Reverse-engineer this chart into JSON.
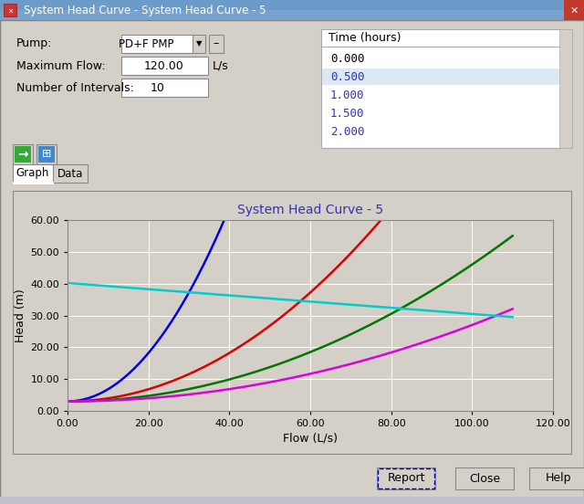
{
  "title": "System Head Curve - 5",
  "xlabel": "Flow (L/s)",
  "ylabel": "Head (m)",
  "xlim": [
    0,
    120
  ],
  "ylim": [
    0,
    60
  ],
  "xticks": [
    0.0,
    20.0,
    40.0,
    60.0,
    80.0,
    100.0,
    120.0
  ],
  "yticks": [
    0.0,
    10.0,
    20.0,
    30.0,
    40.0,
    50.0,
    60.0
  ],
  "title_color": "#3333AA",
  "curves": [
    {
      "label": "0.000",
      "color": "#0000EE",
      "a": 0.038,
      "b": 0.0,
      "c": 3.0,
      "x_end": 40.0
    },
    {
      "label": "0.500",
      "color": "#DD0000",
      "a": 0.0095,
      "b": 0.0,
      "c": 3.0,
      "x_end": 80.0
    },
    {
      "label": "1.000",
      "color": "#007700",
      "a": 0.0043,
      "b": 0.0,
      "c": 3.0,
      "x_end": 110.0
    },
    {
      "label": "1.500",
      "color": "#DD00DD",
      "a": 0.0024,
      "b": 0.0,
      "c": 3.0,
      "x_end": 110.0
    },
    {
      "label": "2.000",
      "color": "#00CCCC",
      "start_y": 40.2,
      "end_y": 29.5,
      "x_start": 0.0,
      "x_end": 110.0
    }
  ],
  "bg_color": "#d4d0c8",
  "plot_area_color": "#d4d0c8",
  "grid_color": "#ffffff",
  "window_title": "System Head Curve - System Head Curve - 5",
  "time_hours_label": "Time (hours)",
  "time_values": [
    "0.000",
    "0.500",
    "1.000",
    "1.500",
    "2.000"
  ],
  "time_colors": [
    "#000000",
    "#3333BB",
    "#3333BB",
    "#3333BB",
    "#3333BB"
  ],
  "pump_label": "Pump:",
  "pump_value": "PD+F PMP",
  "max_flow_label": "Maximum Flow:",
  "max_flow_value": "120.00",
  "max_flow_unit": "L/s",
  "intervals_label": "Number of Intervals:",
  "intervals_value": "10",
  "titlebar_color": "#6b9bc8",
  "titlebar_text_color": "#ffffff"
}
